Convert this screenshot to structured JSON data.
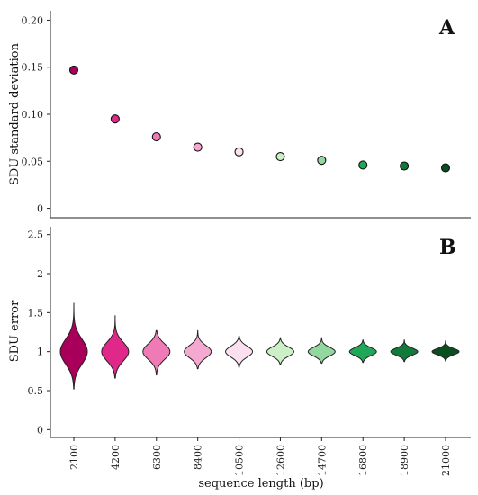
{
  "chart_data": [
    {
      "type": "scatter",
      "panel_label": "A",
      "ylabel": "SDU standard deviation",
      "ylim": [
        -0.01,
        0.21
      ],
      "yticks": [
        0,
        0.05,
        0.1,
        0.15,
        0.2
      ],
      "ytick_labels": [
        "0",
        "0.05",
        "0.10",
        "0.15",
        "0.20"
      ],
      "categories": [
        "2100",
        "4200",
        "6300",
        "8400",
        "10500",
        "12600",
        "14700",
        "16800",
        "18900",
        "21000"
      ],
      "values": [
        0.147,
        0.095,
        0.076,
        0.065,
        0.06,
        0.055,
        0.051,
        0.046,
        0.045,
        0.043
      ],
      "colors": [
        "#a8005a",
        "#e0288a",
        "#f07ab5",
        "#f5a8d0",
        "#fbe0ef",
        "#cdefc7",
        "#93d7a0",
        "#20a858",
        "#117a3a",
        "#0a4d1e"
      ]
    },
    {
      "type": "violin",
      "panel_label": "B",
      "ylabel": "SDU error",
      "xlabel": "sequence length (bp)",
      "ylim": [
        -0.1,
        2.6
      ],
      "yticks": [
        0,
        0.5,
        1,
        1.5,
        2,
        2.5
      ],
      "ytick_labels": [
        "0",
        "0.5",
        "1",
        "1.5",
        "2",
        "2.5"
      ],
      "categories": [
        "2100",
        "4200",
        "6300",
        "8400",
        "10500",
        "12600",
        "14700",
        "16800",
        "18900",
        "21000"
      ],
      "min": [
        0.52,
        0.66,
        0.7,
        0.78,
        0.8,
        0.83,
        0.85,
        0.86,
        0.87,
        0.88
      ],
      "max": [
        1.62,
        1.46,
        1.27,
        1.27,
        1.2,
        1.18,
        1.18,
        1.15,
        1.15,
        1.14
      ],
      "center": [
        1.0,
        1.0,
        1.0,
        1.0,
        1.0,
        1.0,
        1.0,
        1.0,
        1.0,
        1.0
      ],
      "spread": [
        0.16,
        0.12,
        0.1,
        0.08,
        0.07,
        0.06,
        0.055,
        0.05,
        0.045,
        0.04
      ],
      "colors": [
        "#a8005a",
        "#e0288a",
        "#f07ab5",
        "#f5a8d0",
        "#fbe0ef",
        "#cdefc7",
        "#93d7a0",
        "#20a858",
        "#117a3a",
        "#0a4d1e"
      ]
    }
  ]
}
